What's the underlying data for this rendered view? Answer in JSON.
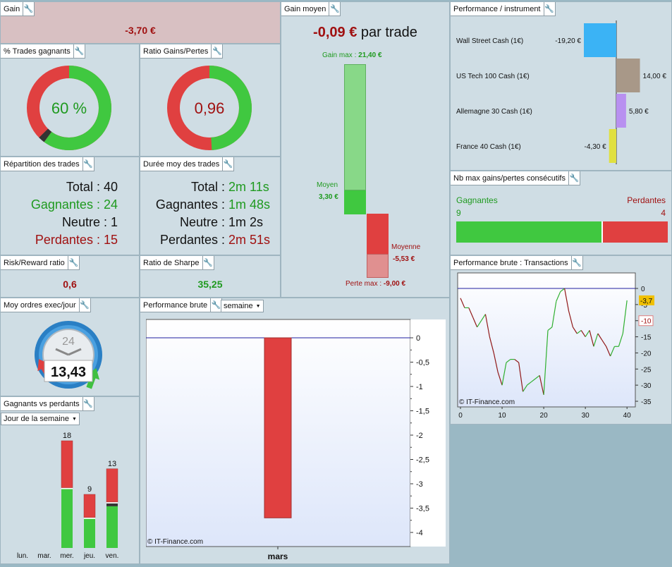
{
  "gain": {
    "title": "Gain",
    "value": "-3,70 €"
  },
  "gain_moyen": {
    "title": "Gain moyen",
    "value": "-0,09 €",
    "suffix": "par trade",
    "gain_max_label": "Gain max :",
    "gain_max_value": "21,40 €",
    "moyen_label": "Moyen",
    "moyen_value": "3,30 €",
    "moyenne_label": "Moyenne",
    "moyenne_value": "-5,53 €",
    "perte_max_label": "Perte max :",
    "perte_max_value": "-9,00 €"
  },
  "trades_gagnants": {
    "title": "% Trades gagnants",
    "value": "60 %",
    "win_fraction": 0.6,
    "neutral_fraction": 0.025
  },
  "ratio_gains_pertes": {
    "title": "Ratio Gains/Pertes",
    "value": "0,96",
    "win_fraction": 0.49
  },
  "repartition": {
    "title": "Répartition des trades",
    "rows": [
      {
        "label": "Total",
        "sep": " : ",
        "value": "40"
      },
      {
        "label": "Gagnantes",
        "sep": " : ",
        "value": "24"
      },
      {
        "label": "Neutre",
        "sep": " : ",
        "value": "1"
      },
      {
        "label": "Perdantes",
        "sep": " : ",
        "value": "15"
      }
    ]
  },
  "duree": {
    "title": "Durée moy des trades",
    "rows": [
      {
        "label": "Total",
        "sep": " : ",
        "value": "2m 11s"
      },
      {
        "label": "Gagnantes",
        "sep": " : ",
        "value": "1m 48s"
      },
      {
        "label": "Neutre",
        "sep": " : ",
        "value": "1m 2s"
      },
      {
        "label": "Perdantes",
        "sep": " : ",
        "value": "2m 51s"
      }
    ]
  },
  "risk_reward": {
    "title": "Risk/Reward ratio",
    "value": "0,6"
  },
  "sharpe": {
    "title": "Ratio de Sharpe",
    "value": "35,25"
  },
  "moy_ordres": {
    "title": "Moy ordres exec/jour",
    "value": "13,43",
    "clock_label": "24"
  },
  "gagnants_vs_perdants": {
    "title": "Gagnants vs perdants",
    "dropdown": "Jour de la semaine",
    "chart_data": {
      "type": "bar",
      "categories": [
        "lun.",
        "mar.",
        "mer.",
        "jeu.",
        "ven."
      ],
      "series": [
        {
          "name": "Gagnantes",
          "values": [
            0,
            0,
            10,
            5,
            7
          ]
        },
        {
          "name": "Neutre",
          "values": [
            0,
            0,
            0,
            0,
            0.3
          ]
        },
        {
          "name": "Perdantes",
          "values": [
            0,
            0,
            8,
            4,
            5.7
          ]
        }
      ],
      "totals": [
        "",
        "",
        "18",
        "9",
        "13"
      ],
      "ylim": [
        0,
        18
      ]
    }
  },
  "performance_brute": {
    "title": "Performance brute",
    "dropdown": "semaine",
    "watermark": "© IT-Finance.com",
    "chart_data": {
      "type": "bar",
      "categories": [
        "mars"
      ],
      "values": [
        -3.7
      ],
      "ylim": [
        -4,
        0
      ],
      "yticks": [
        "0",
        "-0,5",
        "-1",
        "-1,5",
        "-2",
        "-2,5",
        "-3",
        "-3,5",
        "-4"
      ]
    }
  },
  "performance_instrument": {
    "title": "Performance / instrument",
    "chart_data": {
      "type": "bar",
      "categories": [
        "Wall Street Cash (1€)",
        "US Tech 100 Cash (1€)",
        "Allemagne 30 Cash (1€)",
        "France 40 Cash (1€)"
      ],
      "values": [
        -19.2,
        14.0,
        5.8,
        -4.3
      ],
      "value_labels": [
        "-19,20 €",
        "14,00 €",
        "5,80 €",
        "-4,30 €"
      ],
      "colors": [
        "#3bb3f5",
        "#a89888",
        "#b890f0",
        "#e0e040"
      ]
    }
  },
  "nb_max": {
    "title": "Nb max gains/pertes consécutifs",
    "gagnantes_label": "Gagnantes",
    "perdantes_label": "Perdantes",
    "gagnantes_value": "9",
    "perdantes_value": "4",
    "win_count": 9,
    "loss_count": 4
  },
  "perf_transactions": {
    "title": "Performance brute : Transactions",
    "watermark": "© IT-Finance.com",
    "current_label": "-3,7",
    "chart_data": {
      "type": "line",
      "x": [
        0,
        1,
        2,
        3,
        4,
        5,
        6,
        7,
        8,
        9,
        10,
        11,
        12,
        13,
        14,
        15,
        16,
        17,
        18,
        19,
        20,
        21,
        22,
        23,
        24,
        25,
        26,
        27,
        28,
        29,
        30,
        31,
        32,
        33,
        34,
        35,
        36,
        37,
        38,
        39,
        40
      ],
      "y": [
        -3,
        -6,
        -6,
        -9,
        -12,
        -10,
        -8,
        -15,
        -20,
        -26,
        -30,
        -23,
        -22,
        -22,
        -23,
        -32,
        -30,
        -29,
        -28,
        -27,
        -33,
        -13,
        -12,
        -4,
        -1,
        0,
        -7,
        -12,
        -14,
        -13,
        -15,
        -13,
        -18,
        -14,
        -16,
        -18,
        -21,
        -18,
        -18,
        -14,
        -3.7
      ],
      "xlim": [
        0,
        42
      ],
      "ylim": [
        -37,
        0
      ],
      "xticks": [
        "0",
        "10",
        "20",
        "30",
        "40"
      ],
      "yticks": [
        "0",
        "-5",
        "-10",
        "-15",
        "-20",
        "-25",
        "-30",
        "-35"
      ],
      "highlight_tick": "-10"
    }
  },
  "colors": {
    "green": "#40c840",
    "red": "#e04040",
    "neutral": "#333333",
    "light_green": "#88d888",
    "light_red": "#e09090"
  }
}
